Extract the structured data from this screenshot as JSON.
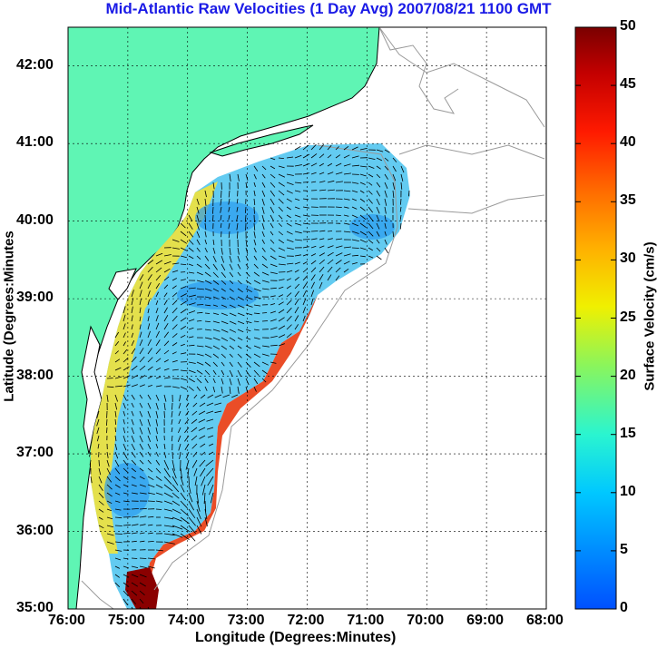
{
  "title": "Mid-Atlantic Raw Velocities (1 Day Avg) 2007/08/21 1100 GMT",
  "axes": {
    "xlabel": "Longitude (Degrees:Minutes)",
    "ylabel": "Latitude (Degrees:Minutes",
    "x_ticks": [
      "76:00",
      "75:00",
      "74:00",
      "73:00",
      "72:00",
      "71:00",
      "70:00",
      "69:00",
      "68:00"
    ],
    "y_ticks": [
      "35:00",
      "36:00",
      "37:00",
      "38:00",
      "39:00",
      "40:00",
      "41:00",
      "42:00"
    ]
  },
  "colorbar": {
    "label": "Surface Velocity (cm/s)",
    "ticks": [
      "0",
      "5",
      "10",
      "15",
      "20",
      "25",
      "30",
      "35",
      "40",
      "45",
      "50"
    ],
    "min": 0,
    "max": 50
  },
  "colors": {
    "land": "#5ff5b4",
    "coastline": "#000000",
    "bathymetry": "#999999",
    "grid": "#000000",
    "title": "#1a1ae6"
  },
  "map": {
    "lon_range": [
      -76,
      -68
    ],
    "lat_range": [
      35,
      42.5
    ],
    "grid": true
  }
}
